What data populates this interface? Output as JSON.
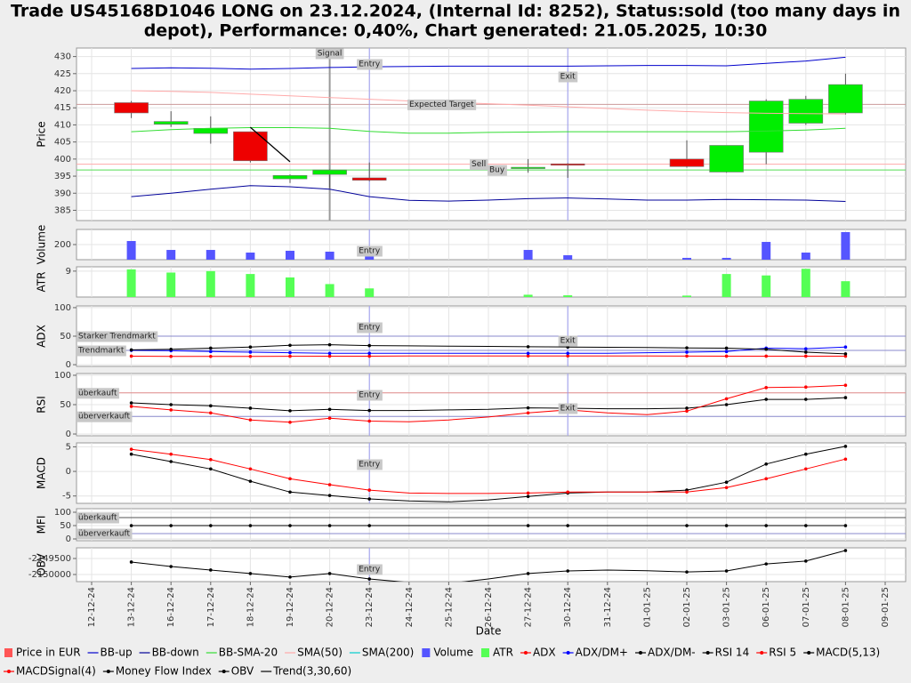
{
  "chart_data": {
    "type": "candlestick",
    "title": [
      "Trade US45168D1046 LONG on 23.12.2024, (Internal Id: 8252), Status:sold (too many days in",
      "depot), Performance: 0,40%, Chart generated: 21.05.2025, 10:30"
    ],
    "xlabel": "Date",
    "categories": [
      "12-12-24",
      "13-12-24",
      "16-12-24",
      "17-12-24",
      "18-12-24",
      "19-12-24",
      "20-12-24",
      "23-12-24",
      "24-12-24",
      "25-12-24",
      "26-12-24",
      "27-12-24",
      "30-12-24",
      "31-12-24",
      "01-01-25",
      "02-01-25",
      "03-01-25",
      "06-01-25",
      "07-01-25",
      "08-01-25",
      "09-01-25"
    ],
    "markers": [
      {
        "label": "Signal",
        "x": "20-12-24",
        "color": "#999999"
      },
      {
        "label": "Entry",
        "x": "23-12-24",
        "color": "#9999ee"
      },
      {
        "label": "Exit",
        "x": "30-12-24",
        "color": "#9999ee"
      }
    ],
    "panels": [
      {
        "type": "candlestick",
        "ylabel": "Price",
        "ylim": [
          382,
          432.5
        ],
        "yticks": [
          385,
          390,
          395,
          400,
          405,
          410,
          415,
          420,
          425,
          430
        ],
        "grid": true,
        "markers": [
          "Signal",
          "Entry",
          "Exit"
        ],
        "levels": [
          {
            "label": "Expected Target",
            "value": 416,
            "color": "#cc9999"
          },
          {
            "label": "Sell",
            "value": 398.5,
            "color": "#ffaaaa"
          },
          {
            "label": "Buy",
            "value": 396.8,
            "color": "#55dd55"
          }
        ],
        "series": [
          {
            "name": "Price in EUR",
            "color": "#ff5555",
            "up_color": "#00ee00",
            "down_color": "#ee0000",
            "open": [
              null,
              416.5,
              410.2,
              407.5,
              408,
              394.2,
              395.5,
              394.5,
              null,
              null,
              null,
              397.4,
              398.6,
              null,
              null,
              400,
              396.2,
              402,
              410.5,
              413.5,
              null
            ],
            "high": [
              null,
              417,
              414,
              412.5,
              408,
              395.5,
              397,
              399,
              null,
              null,
              null,
              400,
              398.8,
              null,
              null,
              405.5,
              404,
              417.5,
              418.5,
              425,
              null
            ],
            "low": [
              null,
              412,
              409.4,
              404.5,
              399,
              393,
              391.5,
              393.5,
              null,
              null,
              null,
              396,
              394.5,
              null,
              null,
              397.5,
              396,
              398.5,
              410,
              413,
              null
            ],
            "close": [
              null,
              413.5,
              411,
              409,
              399.5,
              395.2,
              396.8,
              393.8,
              null,
              null,
              null,
              397.6,
              398.2,
              null,
              null,
              397.8,
              404,
              417,
              417.5,
              421.8,
              null
            ]
          },
          {
            "name": "BB-up",
            "color": "#0000cc",
            "values": [
              null,
              426.5,
              426.7,
              426.6,
              426.3,
              426.5,
              426.8,
              427,
              427.1,
              427.2,
              427.2,
              427.2,
              427.2,
              427.3,
              427.4,
              427.4,
              427.3,
              428,
              428.7,
              429.8,
              null
            ]
          },
          {
            "name": "BB-down",
            "color": "#000099",
            "values": [
              null,
              389,
              390,
              391.2,
              392.2,
              391.9,
              391.2,
              389,
              387.9,
              387.7,
              388,
              388.4,
              388.6,
              388.3,
              388,
              388,
              388.2,
              388.1,
              388,
              387.6,
              null
            ]
          },
          {
            "name": "BB-SMA-20",
            "color": "#33dd33",
            "values": [
              null,
              408,
              408.6,
              409,
              409.2,
              409.2,
              409,
              408.1,
              407.6,
              407.6,
              407.8,
              407.9,
              408,
              408,
              408,
              408,
              408,
              408.2,
              408.5,
              409,
              null
            ]
          },
          {
            "name": "SMA(50)",
            "color": "#ffaaaa",
            "values": [
              null,
              420,
              419.8,
              419.5,
              419,
              418.5,
              418,
              417.5,
              417,
              416.6,
              416.2,
              415.8,
              415.3,
              414.8,
              414.3,
              413.9,
              413.6,
              413.4,
              413.3,
              413.2,
              null
            ]
          },
          {
            "name": "SMA(200)",
            "color": "#00cccc",
            "values": [
              null,
              null,
              null,
              null,
              null,
              null,
              null,
              null,
              null,
              null,
              null,
              null,
              null,
              null,
              null,
              null,
              null,
              null,
              null,
              null,
              null
            ]
          },
          {
            "name": "Trend(3,30,60)",
            "color": "#000000",
            "style": "trend",
            "values": [
              null,
              null,
              null,
              null,
              409.3,
              399.2,
              null,
              null,
              null,
              null,
              null,
              null,
              null,
              null,
              null,
              null,
              null,
              null,
              null,
              null,
              null
            ]
          }
        ]
      },
      {
        "type": "bar",
        "ylabel": "Volume",
        "ylim": [
          0,
          400
        ],
        "yticks": [
          200
        ],
        "grid": true,
        "markers": [
          "Entry"
        ],
        "levels": [],
        "series": [
          {
            "name": "Volume",
            "color": "#5555ff",
            "values": [
              null,
              247,
              129,
              129,
              94,
              118,
              106,
              141,
              null,
              null,
              null,
              129,
              59,
              null,
              null,
              24,
              24,
              235,
              94,
              365,
              null
            ]
          }
        ]
      },
      {
        "type": "bar",
        "ylabel": "ATR",
        "ylim": [
          0,
          10.5
        ],
        "yticks": [
          9
        ],
        "grid": true,
        "markers": [],
        "levels": [],
        "series": [
          {
            "name": "ATR",
            "color": "#55ff55",
            "values": [
              null,
              9.6,
              8.5,
              9,
              8,
              6.8,
              4.5,
              3,
              null,
              null,
              null,
              0.8,
              0.6,
              null,
              null,
              0.5,
              8,
              7.5,
              9.8,
              5.5,
              null
            ]
          }
        ]
      },
      {
        "type": "line",
        "ylabel": "ADX",
        "ylim": [
          -3,
          103
        ],
        "yticks": [
          0,
          50,
          100
        ],
        "grid": true,
        "markers": [
          "Entry",
          "Exit"
        ],
        "levels": [
          {
            "label": "Starker Trendmarkt",
            "value": 50,
            "color": "#8888cc"
          },
          {
            "label": "Trendmarkt",
            "value": 25,
            "color": "#8888cc"
          }
        ],
        "series": [
          {
            "name": "ADX",
            "color": "#ff0000",
            "markers": true,
            "values": [
              null,
              15,
              14.5,
              14.5,
              14.5,
              14.8,
              15,
              15,
              15.2,
              15.2,
              15.3,
              15.3,
              15.3,
              15.3,
              15.2,
              15.1,
              15,
              15,
              15,
              15,
              null
            ]
          },
          {
            "name": "ADX/DM+",
            "color": "#0000ff",
            "markers": true,
            "values": [
              null,
              25,
              24.5,
              23,
              22,
              21,
              20,
              20,
              20,
              20,
              20,
              20,
              20,
              20,
              21,
              22,
              23,
              29,
              28,
              31,
              null
            ]
          },
          {
            "name": "ADX/DM-",
            "color": "#000000",
            "markers": true,
            "values": [
              null,
              26,
              27,
              29,
              31,
              34,
              35,
              33.5,
              33,
              32.5,
              32,
              31.5,
              31,
              30.5,
              30,
              29.5,
              29,
              27,
              22,
              19,
              null
            ]
          }
        ]
      },
      {
        "type": "line",
        "ylabel": "RSI",
        "ylim": [
          -3,
          103
        ],
        "yticks": [
          0,
          50,
          100
        ],
        "grid": true,
        "markers": [
          "Entry",
          "Exit"
        ],
        "levels": [
          {
            "label": "überkauft",
            "value": 70,
            "color": "#dd8888"
          },
          {
            "label": "überverkauft",
            "value": 30,
            "color": "#8888cc"
          }
        ],
        "series": [
          {
            "name": "RSI 14",
            "color": "#000000",
            "markers": true,
            "values": [
              null,
              53,
              50,
              48,
              44,
              39.5,
              42,
              40,
              40,
              41,
              42,
              44.5,
              44,
              43,
              43,
              44,
              50,
              59,
              59,
              62,
              null
            ]
          },
          {
            "name": "RSI 5",
            "color": "#ff0000",
            "markers": true,
            "values": [
              null,
              47,
              41,
              36,
              24,
              20,
              27,
              22,
              21,
              24,
              29,
              36,
              41,
              36,
              33,
              39,
              60,
              79,
              80,
              83,
              null
            ]
          }
        ]
      },
      {
        "type": "line",
        "ylabel": "MACD",
        "ylim": [
          -6.5,
          5.8
        ],
        "yticks": [
          -5,
          0,
          5
        ],
        "grid": true,
        "markers": [
          "Entry"
        ],
        "levels": [],
        "series": [
          {
            "name": "MACD(5,13)",
            "color": "#000000",
            "markers": true,
            "values": [
              null,
              3.5,
              2,
              0.5,
              -2,
              -4.2,
              -4.9,
              -5.6,
              -6,
              -6.2,
              -5.8,
              -5.1,
              -4.4,
              -4.2,
              -4.2,
              -3.8,
              -2.2,
              1.5,
              3.5,
              5.1,
              null
            ]
          },
          {
            "name": "MACDSignal(4)",
            "color": "#ff0000",
            "markers": true,
            "values": [
              null,
              4.5,
              3.5,
              2.4,
              0.5,
              -1.5,
              -2.7,
              -3.8,
              -4.4,
              -4.5,
              -4.5,
              -4.4,
              -4.2,
              -4.2,
              -4.2,
              -4.2,
              -3.3,
              -1.5,
              0.5,
              2.5,
              null
            ]
          }
        ]
      },
      {
        "type": "line",
        "ylabel": "MFI",
        "ylim": [
          -6.7,
          113.3
        ],
        "yticks": [
          0,
          50,
          100
        ],
        "grid": true,
        "markers": [],
        "levels": [
          {
            "label": "überkauft",
            "value": 80,
            "color": "#555555"
          },
          {
            "label": "überverkauft",
            "value": 20,
            "color": "#8888cc"
          }
        ],
        "series": [
          {
            "name": "Money Flow Index",
            "color": "#000000",
            "markers": true,
            "values": [
              null,
              50,
              50,
              50,
              50,
              50,
              50,
              50,
              50,
              50,
              50,
              50,
              50,
              50,
              50,
              50,
              50,
              50,
              50,
              50,
              null
            ]
          }
        ]
      },
      {
        "type": "line",
        "ylabel": "OBV",
        "ylim": [
          -2150222,
          -2149167
        ],
        "yticks": [
          -2150000,
          -2149500
        ],
        "grid": true,
        "markers": [
          "Entry"
        ],
        "levels": [],
        "series": [
          {
            "name": "OBV",
            "color": "#000000",
            "markers": true,
            "values": [
              null,
              -2149610,
              -2149750,
              -2149860,
              -2149970,
              -2150080,
              -2149970,
              -2150140,
              -2150250,
              -2150280,
              -2150140,
              -2149970,
              -2149890,
              -2149860,
              -2149880,
              -2149920,
              -2149890,
              -2149670,
              -2149580,
              -2149250,
              null
            ]
          }
        ]
      }
    ]
  }
}
